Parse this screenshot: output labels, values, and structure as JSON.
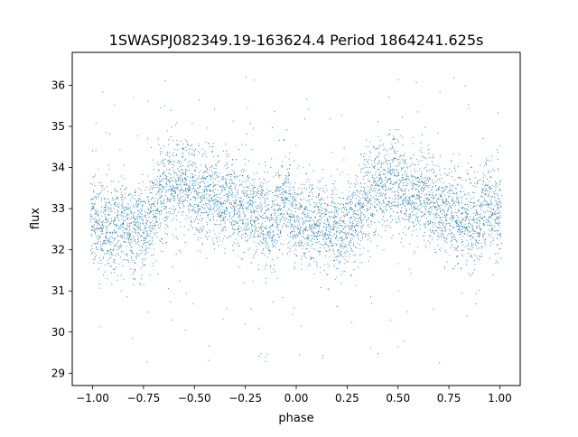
{
  "chart_data": {
    "type": "scatter",
    "title": "1SWASPJ082349.19-163624.4 Period 1864241.625s",
    "xlabel": "phase",
    "ylabel": "flux",
    "xlim": [
      -1.1,
      1.1
    ],
    "ylim": [
      28.7,
      36.8
    ],
    "xticks": [
      -1.0,
      -0.75,
      -0.5,
      -0.25,
      0.0,
      0.25,
      0.5,
      0.75,
      1.0
    ],
    "xtick_labels": [
      "−1.00",
      "−0.75",
      "−0.50",
      "−0.25",
      "0.00",
      "0.25",
      "0.50",
      "0.75",
      "1.00"
    ],
    "yticks": [
      29,
      30,
      31,
      32,
      33,
      34,
      35,
      36
    ],
    "ytick_labels": [
      "29",
      "30",
      "31",
      "32",
      "33",
      "34",
      "35",
      "36"
    ],
    "grid": false,
    "legend": "none",
    "marker_color": "#1f77b4",
    "points_description_note": "",
    "series": [
      {
        "x": [
          -1.0,
          -0.98,
          -0.96,
          -0.94,
          -0.92,
          -0.9,
          -0.88,
          -0.86,
          -0.84,
          -0.82,
          -0.8,
          -0.78,
          -0.76,
          -0.74,
          -0.72,
          -0.7,
          -0.68,
          -0.66,
          -0.64,
          -0.62,
          -0.6,
          -0.58,
          -0.56,
          -0.54,
          -0.52,
          -0.5,
          -0.48,
          -0.46,
          -0.44,
          -0.42,
          -0.4,
          -0.38,
          -0.36,
          -0.34,
          -0.32,
          -0.3,
          -0.28,
          -0.26,
          -0.24,
          -0.22,
          -0.2,
          -0.18,
          -0.16,
          -0.14,
          -0.12,
          -0.1,
          -0.08,
          -0.06,
          -0.04,
          -0.02,
          0.0,
          0.02,
          0.04,
          0.06,
          0.08,
          0.1,
          0.12,
          0.14,
          0.16,
          0.18,
          0.2,
          0.22,
          0.24,
          0.26,
          0.28,
          0.3,
          0.32,
          0.34,
          0.36,
          0.38,
          0.4,
          0.42,
          0.44,
          0.46,
          0.48,
          0.5,
          0.52,
          0.54,
          0.56,
          0.58,
          0.6,
          0.62,
          0.64,
          0.66,
          0.68,
          0.7,
          0.72,
          0.74,
          0.76,
          0.78,
          0.8,
          0.82,
          0.84,
          0.86,
          0.88,
          0.9,
          0.92,
          0.94,
          0.96,
          0.98,
          1.0
        ],
        "y": [
          32.8,
          32.6,
          32.5,
          32.7,
          32.6,
          32.5,
          32.6,
          32.7,
          32.6,
          32.5,
          32.4,
          32.6,
          32.5,
          32.5,
          32.7,
          32.9,
          33.1,
          33.3,
          33.4,
          33.5,
          33.6,
          33.5,
          33.6,
          33.7,
          33.6,
          33.5,
          33.3,
          33.2,
          33.4,
          33.5,
          33.3,
          33.2,
          33.1,
          33.3,
          33.2,
          33.0,
          32.9,
          33.1,
          33.2,
          33.0,
          32.9,
          32.8,
          32.9,
          32.7,
          32.6,
          32.8,
          33.0,
          33.2,
          33.1,
          32.8,
          32.7,
          32.6,
          32.5,
          32.6,
          32.5,
          32.6,
          32.7,
          32.6,
          32.5,
          32.6,
          32.5,
          32.4,
          32.6,
          32.7,
          32.6,
          32.8,
          33.0,
          33.2,
          33.3,
          33.4,
          33.5,
          33.6,
          33.5,
          33.6,
          33.7,
          33.6,
          33.4,
          33.3,
          33.2,
          33.4,
          33.3,
          33.4,
          33.3,
          33.2,
          33.1,
          33.0,
          32.9,
          33.0,
          33.1,
          32.9,
          32.8,
          32.7,
          32.8,
          32.7,
          32.6,
          32.8,
          33.0,
          33.1,
          33.0,
          32.9,
          32.8
        ]
      }
    ]
  }
}
